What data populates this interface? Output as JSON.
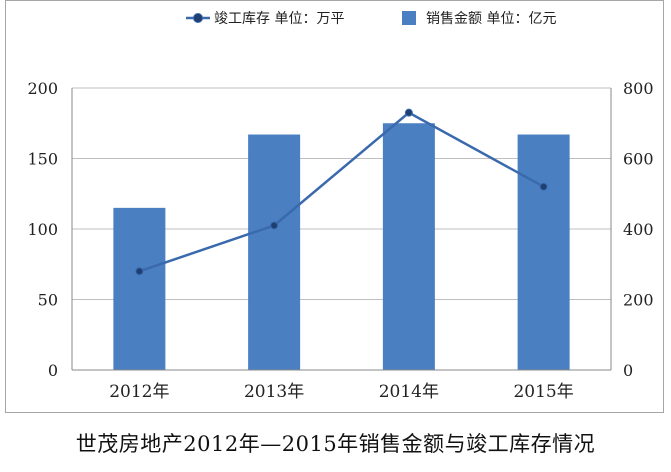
{
  "caption": "世茂房地产2012年—2015年销售金额与竣工库存情况",
  "colors": {
    "bar": "#4a7fc1",
    "line": "#3a6aad",
    "grid": "#bfbfbf",
    "axis": "#888888"
  },
  "chart_data": {
    "type": "bar",
    "categories": [
      "2012年",
      "2013年",
      "2014年",
      "2015年"
    ],
    "series": [
      {
        "name": "销售金额 单位：亿元",
        "type": "bar",
        "axis": "left",
        "values": [
          115,
          167,
          175,
          167
        ]
      },
      {
        "name": "竣工库存 单位：万平",
        "type": "line",
        "axis": "right",
        "values": [
          280,
          410,
          730,
          520
        ]
      }
    ],
    "y_left": {
      "ylim": [
        0,
        200
      ],
      "ticks": [
        "0",
        "50",
        "100",
        "150",
        "200"
      ]
    },
    "y_right": {
      "ylim": [
        0,
        800
      ],
      "ticks": [
        "0",
        "200",
        "400",
        "600",
        "800"
      ]
    },
    "grid": true,
    "legend_position": "top-right"
  }
}
